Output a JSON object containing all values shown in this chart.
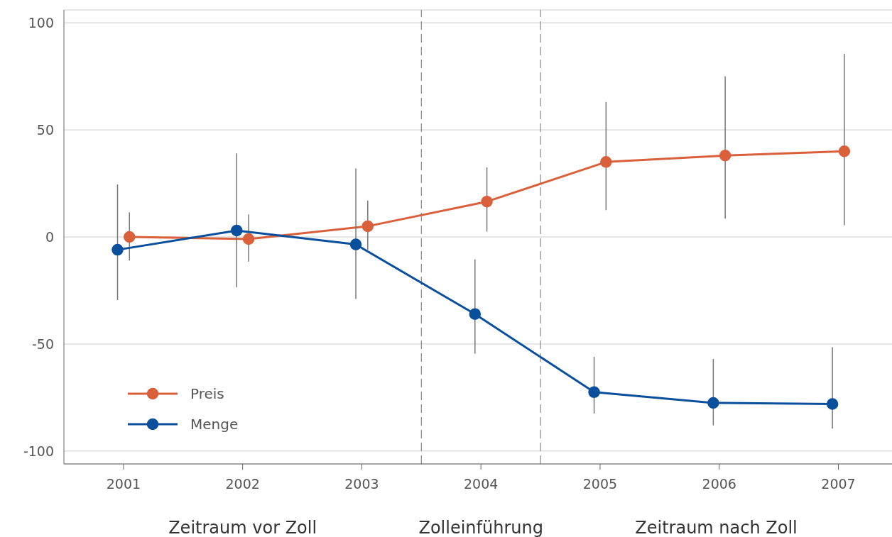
{
  "chart_data": {
    "type": "line",
    "xlim": [
      2000.5,
      2007.45
    ],
    "xticks": [
      2001,
      2002,
      2003,
      2004,
      2005,
      2006,
      2007
    ],
    "ylim": [
      -106,
      106
    ],
    "yticks": [
      -100,
      -50,
      0,
      50,
      100
    ],
    "grid": "y",
    "legend": "bottom left",
    "marker": "circle",
    "ref_lines": [
      {
        "axis": "x",
        "value": 2003.5,
        "line_style": "dashed",
        "color": "#888888"
      },
      {
        "axis": "x",
        "value": 2004.5,
        "line_style": "dashed",
        "color": "#888888"
      }
    ],
    "annotations": [
      "Zeitraum vor Zoll",
      "Zolleinführung",
      "Zeitraum nach Zoll"
    ],
    "series": [
      {
        "name": "Preis",
        "color": "#d9603b",
        "x": [
          2001.05,
          2002.05,
          2003.05,
          2004.05,
          2005.05,
          2006.05,
          2007.05
        ],
        "values": [
          0,
          -1,
          5,
          16.5,
          35,
          38,
          40
        ],
        "errors": [
          [
            -11,
            11.5
          ],
          [
            -11.5,
            10.5
          ],
          [
            -6,
            17
          ],
          [
            2.5,
            32.5
          ],
          [
            12.5,
            63
          ],
          [
            8.5,
            75
          ],
          [
            5.5,
            85.5
          ]
        ]
      },
      {
        "name": "Menge",
        "color": "#0a4f9c",
        "x": [
          2000.95,
          2001.95,
          2002.95,
          2003.95,
          2004.95,
          2005.95,
          2006.95
        ],
        "values": [
          -6,
          3,
          -3.5,
          -36,
          -72.5,
          -77.5,
          -78
        ],
        "errors": [
          [
            -29.5,
            24.5
          ],
          [
            -23.5,
            39
          ],
          [
            -29,
            32
          ],
          [
            -54.5,
            -10.5
          ],
          [
            -82.5,
            -56
          ],
          [
            -88,
            -57
          ],
          [
            -89.5,
            -51.5
          ]
        ]
      }
    ]
  }
}
